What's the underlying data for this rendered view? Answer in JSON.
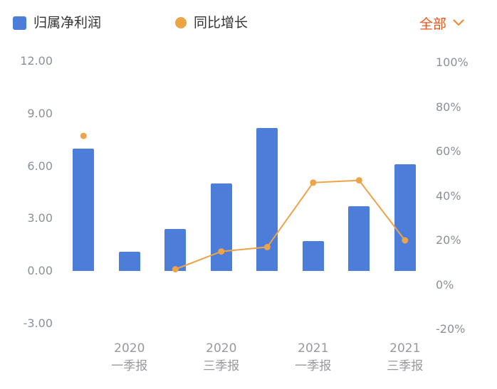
{
  "legend": {
    "items": [
      {
        "label": "归属净利润",
        "marker": "square",
        "color": "#4c7dd8"
      },
      {
        "label": "同比增长",
        "marker": "circle",
        "color": "#eda448"
      }
    ]
  },
  "filter": {
    "label": "全部",
    "icon": "chevron-down-icon"
  },
  "colors": {
    "bar": "#4c7dd8",
    "line": "#eda448",
    "filter_text": "#e4571e",
    "axis_text": "#8b909a",
    "legend_text": "#333333"
  },
  "chart_data": {
    "type": "combo",
    "title": "",
    "grid": false,
    "legend_position": "top",
    "categories": [
      "",
      "2020 一季报",
      "",
      "2020 三季报",
      "",
      "2021 一季报",
      "",
      "2021 三季报"
    ],
    "series": [
      {
        "name": "归属净利润",
        "type": "bar",
        "axis": "left",
        "color": "#4c7dd8",
        "values": [
          7.0,
          1.1,
          2.4,
          5.0,
          8.2,
          1.7,
          3.7,
          6.1
        ]
      },
      {
        "name": "同比增长",
        "type": "line",
        "axis": "right",
        "color": "#eda448",
        "values": [
          67,
          null,
          7,
          15,
          17,
          46,
          47,
          20
        ]
      }
    ],
    "x_tick_labels": [
      {
        "slot": 1,
        "lines": [
          "2020",
          "一季报"
        ]
      },
      {
        "slot": 3,
        "lines": [
          "2020",
          "三季报"
        ]
      },
      {
        "slot": 5,
        "lines": [
          "2021",
          "一季报"
        ]
      },
      {
        "slot": 7,
        "lines": [
          "2021",
          "三季报"
        ]
      }
    ],
    "left_axis": {
      "ticks": [
        "12.00",
        "9.00",
        "6.00",
        "3.00",
        "0.00",
        "-3.00"
      ],
      "min": -3,
      "max": 12
    },
    "right_axis": {
      "ticks": [
        "100%",
        "80%",
        "60%",
        "40%",
        "20%",
        "0%",
        "-20%"
      ],
      "min": -20,
      "max": 100
    }
  }
}
